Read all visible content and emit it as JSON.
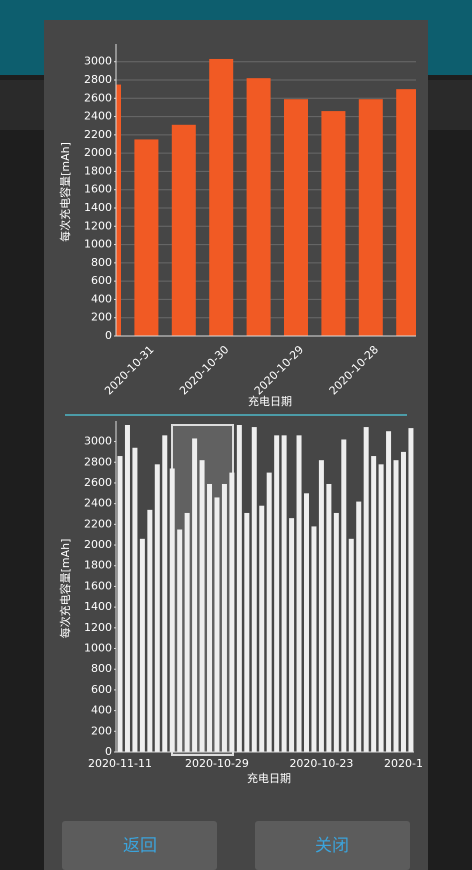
{
  "chart_data": [
    {
      "type": "bar",
      "y_label": "每次充电容量[mAh]",
      "x_label": "充电日期",
      "categories": [
        null,
        "2020-10-31",
        null,
        "2020-10-30",
        null,
        "2020-10-29",
        null,
        "2020-10-28",
        null
      ],
      "values": [
        2750,
        2150,
        2310,
        3030,
        2820,
        2590,
        2460,
        2590,
        2700
      ],
      "color": "#f15a24",
      "ylim": [
        0,
        3150
      ],
      "yticks": [
        0,
        200,
        400,
        600,
        800,
        1000,
        1200,
        1400,
        1600,
        1800,
        2000,
        2200,
        2400,
        2600,
        2800,
        3000
      ],
      "grid": true
    },
    {
      "type": "bar",
      "y_label": "每次充电容量[mAh]",
      "x_label": "充电日期",
      "categories": [
        "2020-11-11",
        null,
        null,
        null,
        null,
        null,
        null,
        null,
        null,
        null,
        null,
        null,
        null,
        "2020-10-29",
        null,
        null,
        null,
        null,
        null,
        null,
        null,
        null,
        null,
        null,
        null,
        null,
        null,
        "2020-10-23",
        null,
        null,
        null,
        null,
        null,
        null,
        null,
        null,
        null,
        null,
        "2020-1",
        null
      ],
      "values": [
        2860,
        3160,
        2940,
        2060,
        2340,
        2780,
        3060,
        2740,
        2150,
        2310,
        3030,
        2820,
        2590,
        2460,
        2590,
        2700,
        3160,
        2310,
        3140,
        2380,
        2700,
        3060,
        3060,
        2260,
        3060,
        2500,
        2180,
        2820,
        2590,
        2310,
        3020,
        2060,
        2420,
        3140,
        2860,
        2780,
        3100,
        2820,
        2900,
        3130
      ],
      "color": "#eeeeee",
      "ylim": [
        0,
        3160
      ],
      "yticks": [
        0,
        200,
        400,
        600,
        800,
        1000,
        1200,
        1400,
        1600,
        1800,
        2000,
        2200,
        2400,
        2600,
        2800,
        3000
      ],
      "grid": false
    }
  ],
  "buttons": [
    "返回",
    "关闭"
  ]
}
